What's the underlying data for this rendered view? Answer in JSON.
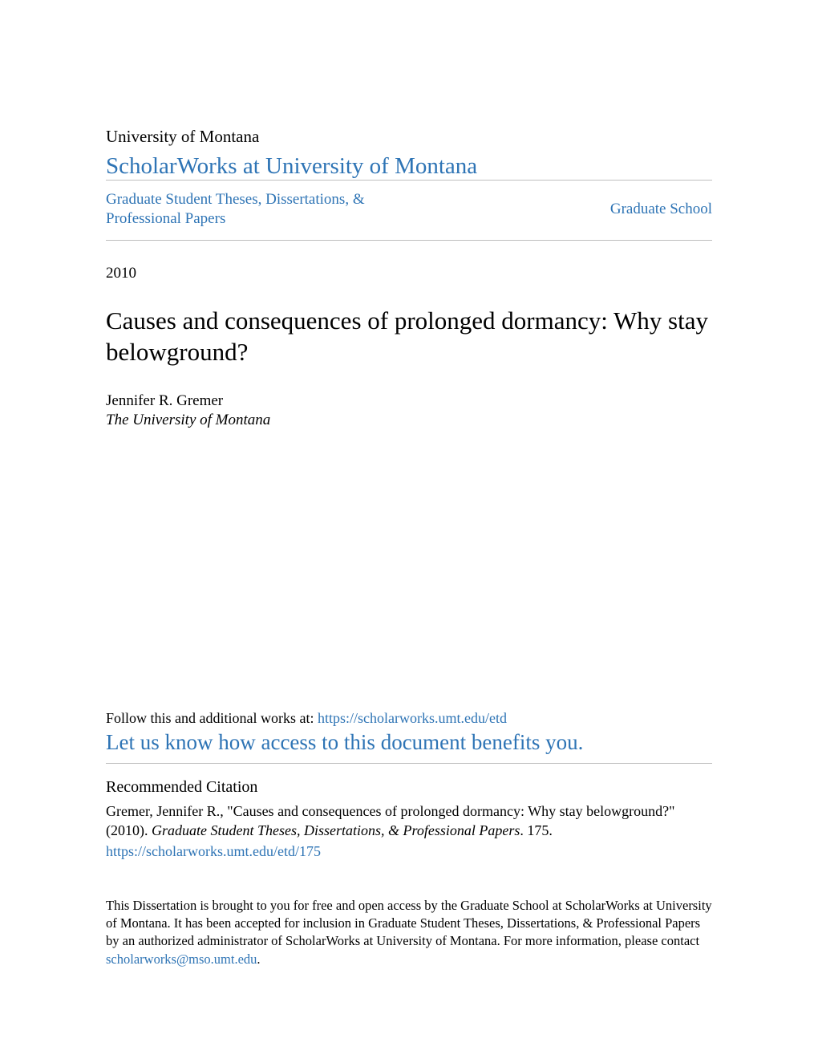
{
  "colors": {
    "link": "#2e74b5",
    "text": "#000000",
    "divider": "#bfbfbf",
    "background": "#ffffff"
  },
  "typography": {
    "body_family": "Georgia, 'Times New Roman', serif",
    "institution_fontsize": 21,
    "repo_fontsize": 29,
    "nav_fontsize": 19,
    "year_fontsize": 19,
    "title_fontsize": 31,
    "author_fontsize": 19,
    "follow_fontsize": 18,
    "benefit_fontsize": 27,
    "rec_heading_fontsize": 20,
    "citation_fontsize": 18,
    "disclaimer_fontsize": 16.5
  },
  "header": {
    "institution": "University of Montana",
    "repository": "ScholarWorks at University of Montana"
  },
  "nav": {
    "collection": "Graduate Student Theses, Dissertations, & Professional Papers",
    "parent": "Graduate School"
  },
  "work": {
    "year": "2010",
    "title": "Causes and consequences of prolonged dormancy: Why stay belowground?",
    "author": "Jennifer R. Gremer",
    "affiliation": "The University of Montana"
  },
  "follow": {
    "prefix": "Follow this and additional works at: ",
    "url": "https://scholarworks.umt.edu/etd",
    "benefit": "Let us know how access to this document benefits you."
  },
  "citation": {
    "heading": "Recommended Citation",
    "text_line1": "Gremer, Jennifer R., \"Causes and consequences of prolonged dormancy: Why stay belowground?\" (2010).",
    "series": "Graduate Student Theses, Dissertations, & Professional Papers",
    "number_suffix": ". 175.",
    "url": "https://scholarworks.umt.edu/etd/175"
  },
  "disclaimer": {
    "text": "This Dissertation is brought to you for free and open access by the Graduate School at ScholarWorks at University of Montana. It has been accepted for inclusion in Graduate Student Theses, Dissertations, & Professional Papers by an authorized administrator of ScholarWorks at University of Montana. For more information, please contact ",
    "email": "scholarworks@mso.umt.edu",
    "period": "."
  }
}
